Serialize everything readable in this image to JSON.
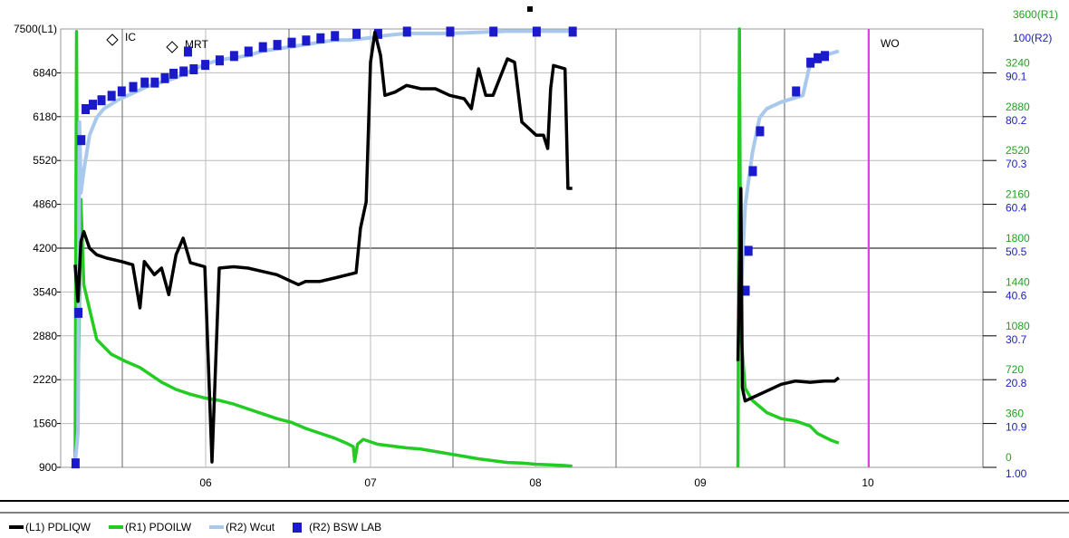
{
  "chart_data": {
    "type": "line",
    "x_tick_labels": [
      "06",
      "07",
      "08",
      "09",
      "10"
    ],
    "left_axis": {
      "unit_label": "(L1)",
      "top_label": "7500(L1)",
      "ticks": [
        "900",
        "1560",
        "2220",
        "2880",
        "3540",
        "4200",
        "4860",
        "5520",
        "6180",
        "6840"
      ],
      "ylim": [
        900,
        7500
      ]
    },
    "right_axis_r1": {
      "top_label": "3600(R1)",
      "ticks": [
        "0",
        "360",
        "720",
        "1080",
        "1440",
        "1800",
        "2160",
        "2520",
        "2880",
        "3240"
      ],
      "ylim": [
        0,
        3600
      ]
    },
    "right_axis_r2": {
      "top_label": "100(R2)",
      "ticks": [
        "1.00",
        "10.9",
        "20.8",
        "30.7",
        "40.6",
        "50.5",
        "60.4",
        "70.3",
        "80.2",
        "90.1"
      ],
      "ylim": [
        1,
        100
      ]
    },
    "annotations": [
      {
        "label": "IC",
        "x": 5.45,
        "marker": "diamond"
      },
      {
        "label": "MRT",
        "x": 5.85,
        "marker": "diamond"
      },
      {
        "label": "WO",
        "x": 10.0,
        "marker": "line",
        "color": "#e040e0"
      }
    ],
    "xlim": [
      5.3,
      11.7
    ],
    "grid": true,
    "series": [
      {
        "name": "(L1) PDLIQW",
        "axis": "L1",
        "color": "#000000",
        "points": [
          [
            5.4,
            3950
          ],
          [
            5.42,
            3400
          ],
          [
            5.44,
            4300
          ],
          [
            5.46,
            4450
          ],
          [
            5.5,
            4200
          ],
          [
            5.55,
            4100
          ],
          [
            5.62,
            4050
          ],
          [
            5.72,
            4000
          ],
          [
            5.8,
            3950
          ],
          [
            5.85,
            3300
          ],
          [
            5.88,
            4000
          ],
          [
            5.95,
            3800
          ],
          [
            6.0,
            3900
          ],
          [
            6.05,
            3500
          ],
          [
            6.1,
            4100
          ],
          [
            6.15,
            4350
          ],
          [
            6.2,
            3980
          ],
          [
            6.25,
            3950
          ],
          [
            6.3,
            3920
          ],
          [
            6.35,
            980
          ],
          [
            6.4,
            3900
          ],
          [
            6.5,
            3920
          ],
          [
            6.6,
            3900
          ],
          [
            6.7,
            3850
          ],
          [
            6.8,
            3800
          ],
          [
            6.9,
            3700
          ],
          [
            6.95,
            3650
          ],
          [
            7.0,
            3700
          ],
          [
            7.1,
            3700
          ],
          [
            7.2,
            3750
          ],
          [
            7.35,
            3830
          ],
          [
            7.38,
            4500
          ],
          [
            7.42,
            4900
          ],
          [
            7.45,
            7000
          ],
          [
            7.48,
            7450
          ],
          [
            7.52,
            7100
          ],
          [
            7.55,
            6500
          ],
          [
            7.62,
            6550
          ],
          [
            7.7,
            6650
          ],
          [
            7.8,
            6600
          ],
          [
            7.9,
            6600
          ],
          [
            8.0,
            6500
          ],
          [
            8.1,
            6450
          ],
          [
            8.15,
            6300
          ],
          [
            8.2,
            6900
          ],
          [
            8.25,
            6500
          ],
          [
            8.3,
            6500
          ],
          [
            8.4,
            7050
          ],
          [
            8.45,
            7000
          ],
          [
            8.5,
            6100
          ],
          [
            8.55,
            6000
          ],
          [
            8.6,
            5900
          ],
          [
            8.65,
            5900
          ],
          [
            8.68,
            5700
          ],
          [
            8.7,
            6600
          ],
          [
            8.72,
            6950
          ],
          [
            8.8,
            6900
          ],
          [
            8.82,
            5100
          ],
          [
            8.85,
            5100
          ]
        ]
      },
      {
        "name": "(R1) PDOILW",
        "axis": "R1",
        "color": "#22cc22",
        "points": [
          [
            5.4,
            0
          ],
          [
            5.41,
            3580
          ],
          [
            5.42,
            500
          ],
          [
            5.44,
            2200
          ],
          [
            5.46,
            1500
          ],
          [
            5.5,
            1300
          ],
          [
            5.55,
            1050
          ],
          [
            5.65,
            930
          ],
          [
            5.75,
            870
          ],
          [
            5.85,
            820
          ],
          [
            6.0,
            700
          ],
          [
            6.1,
            640
          ],
          [
            6.2,
            600
          ],
          [
            6.3,
            570
          ],
          [
            6.4,
            550
          ],
          [
            6.5,
            520
          ],
          [
            6.6,
            480
          ],
          [
            6.7,
            440
          ],
          [
            6.8,
            400
          ],
          [
            6.9,
            370
          ],
          [
            7.0,
            320
          ],
          [
            7.1,
            280
          ],
          [
            7.2,
            240
          ],
          [
            7.28,
            200
          ],
          [
            7.33,
            170
          ],
          [
            7.34,
            50
          ],
          [
            7.36,
            190
          ],
          [
            7.4,
            230
          ],
          [
            7.5,
            190
          ],
          [
            7.6,
            175
          ],
          [
            7.7,
            160
          ],
          [
            7.8,
            150
          ],
          [
            7.9,
            130
          ],
          [
            8.0,
            110
          ],
          [
            8.1,
            90
          ],
          [
            8.2,
            70
          ],
          [
            8.3,
            55
          ],
          [
            8.4,
            40
          ],
          [
            8.5,
            35
          ],
          [
            8.6,
            25
          ],
          [
            8.7,
            20
          ],
          [
            8.8,
            15
          ],
          [
            8.85,
            10
          ]
        ]
      },
      {
        "name": "(R2) Wcut",
        "axis": "R2",
        "color": "#a8c8ec",
        "points": [
          [
            5.4,
            2
          ],
          [
            5.42,
            9
          ],
          [
            5.43,
            79
          ],
          [
            5.44,
            63
          ],
          [
            5.46,
            68
          ],
          [
            5.5,
            76
          ],
          [
            5.55,
            80
          ],
          [
            5.6,
            82
          ],
          [
            5.7,
            84
          ],
          [
            5.8,
            85.5
          ],
          [
            5.9,
            87
          ],
          [
            6.0,
            88
          ],
          [
            6.1,
            89
          ],
          [
            6.2,
            90.5
          ],
          [
            6.3,
            92
          ],
          [
            6.4,
            93
          ],
          [
            6.5,
            93.5
          ],
          [
            6.6,
            94
          ],
          [
            6.7,
            95
          ],
          [
            6.8,
            95.5
          ],
          [
            6.9,
            96
          ],
          [
            7.0,
            96.5
          ],
          [
            7.1,
            97
          ],
          [
            7.2,
            97.5
          ],
          [
            7.3,
            97.5
          ],
          [
            7.45,
            98
          ],
          [
            7.55,
            98.5
          ],
          [
            7.7,
            99
          ],
          [
            8.0,
            99
          ],
          [
            8.4,
            99.5
          ],
          [
            8.85,
            99.5
          ]
        ]
      },
      {
        "name": "(R2) BSW LAB",
        "axis": "R2",
        "color": "#1a1acc",
        "points": [
          [
            5.4,
            2
          ],
          [
            5.42,
            36
          ],
          [
            5.44,
            75
          ],
          [
            5.47,
            82
          ],
          [
            5.52,
            83
          ],
          [
            5.58,
            84
          ],
          [
            5.65,
            85
          ],
          [
            5.72,
            86
          ],
          [
            5.8,
            87
          ],
          [
            5.88,
            88
          ],
          [
            5.95,
            88
          ],
          [
            6.02,
            89
          ],
          [
            6.08,
            90
          ],
          [
            6.15,
            90.5
          ],
          [
            6.18,
            95
          ],
          [
            6.22,
            91
          ],
          [
            6.3,
            92
          ],
          [
            6.4,
            93
          ],
          [
            6.5,
            94
          ],
          [
            6.6,
            95
          ],
          [
            6.7,
            96
          ],
          [
            6.8,
            96.5
          ],
          [
            6.9,
            97
          ],
          [
            7.0,
            97.5
          ],
          [
            7.1,
            98
          ],
          [
            7.2,
            98.5
          ],
          [
            7.35,
            99
          ],
          [
            7.5,
            99
          ],
          [
            7.7,
            99.5
          ],
          [
            8.0,
            99.5
          ],
          [
            8.3,
            99.5
          ],
          [
            8.6,
            99.5
          ],
          [
            8.85,
            99.5
          ]
        ]
      }
    ],
    "series_after_wo": [
      {
        "name": "(L1) PDLIQW",
        "axis": "L1",
        "color": "#000000",
        "points": [
          [
            10.0,
            2500
          ],
          [
            10.02,
            5100
          ],
          [
            10.03,
            2100
          ],
          [
            10.05,
            1900
          ],
          [
            10.1,
            1950
          ],
          [
            10.2,
            2050
          ],
          [
            10.3,
            2150
          ],
          [
            10.4,
            2200
          ],
          [
            10.5,
            2180
          ],
          [
            10.6,
            2200
          ],
          [
            10.67,
            2200
          ],
          [
            10.7,
            2250
          ]
        ]
      },
      {
        "name": "(R1) PDOILW",
        "axis": "R1",
        "color": "#22cc22",
        "points": [
          [
            10.0,
            0
          ],
          [
            10.01,
            3600
          ],
          [
            10.02,
            1100
          ],
          [
            10.05,
            650
          ],
          [
            10.1,
            550
          ],
          [
            10.2,
            450
          ],
          [
            10.3,
            400
          ],
          [
            10.4,
            380
          ],
          [
            10.5,
            340
          ],
          [
            10.55,
            280
          ],
          [
            10.6,
            250
          ],
          [
            10.65,
            220
          ],
          [
            10.7,
            200
          ]
        ]
      },
      {
        "name": "(R2) Wcut",
        "axis": "R2",
        "color": "#a8c8ec",
        "points": [
          [
            10.02,
            40
          ],
          [
            10.05,
            60
          ],
          [
            10.1,
            72
          ],
          [
            10.15,
            80
          ],
          [
            10.2,
            82
          ],
          [
            10.3,
            83.5
          ],
          [
            10.4,
            84.5
          ],
          [
            10.45,
            85
          ],
          [
            10.5,
            92
          ],
          [
            10.55,
            93
          ],
          [
            10.6,
            94
          ],
          [
            10.7,
            95
          ]
        ]
      },
      {
        "name": "(R2) BSW LAB",
        "axis": "R2",
        "color": "#1a1acc",
        "points": [
          [
            10.05,
            41
          ],
          [
            10.07,
            50
          ],
          [
            10.1,
            68
          ],
          [
            10.15,
            77
          ],
          [
            10.4,
            86
          ],
          [
            10.5,
            92.5
          ],
          [
            10.55,
            93.5
          ],
          [
            10.6,
            94
          ]
        ]
      }
    ]
  },
  "legend": {
    "items": [
      {
        "label": "(L1) PDLIQW",
        "color": "#000000",
        "kind": "line"
      },
      {
        "label": "(R1) PDOILW",
        "color": "#22cc22",
        "kind": "line"
      },
      {
        "label": "(R2) Wcut",
        "color": "#a8c8ec",
        "kind": "line"
      },
      {
        "label": "(R2) BSW  LAB",
        "color": "#1a1acc",
        "kind": "square"
      }
    ]
  }
}
